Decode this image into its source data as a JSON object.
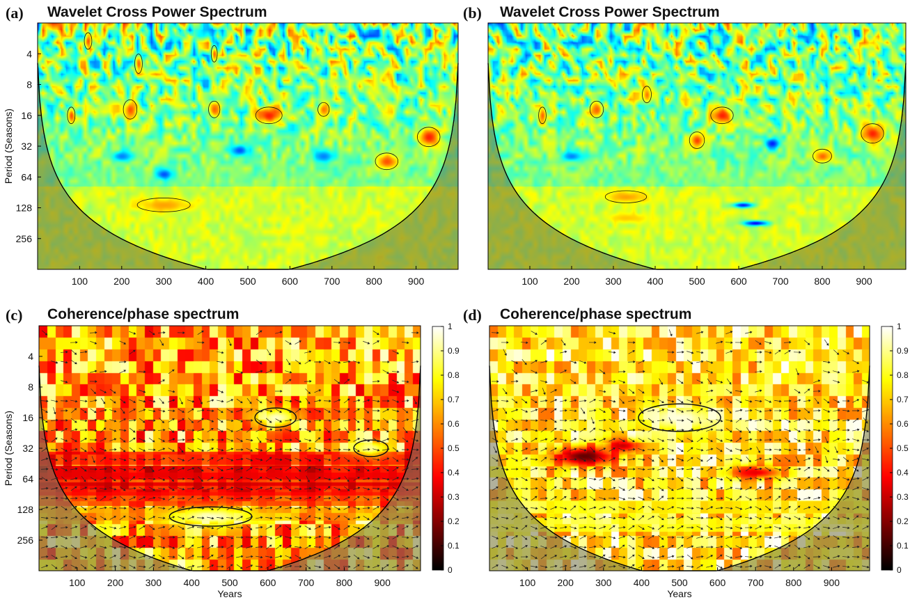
{
  "chart_data": [
    {
      "panel": "(a)",
      "type": "heatmap",
      "title": "Wavelet Cross Power Spectrum",
      "ylabel": "Period (Seasons)",
      "xlabel": "",
      "xticks": [
        "100",
        "200",
        "300",
        "400",
        "500",
        "600",
        "700",
        "800",
        "900"
      ],
      "yticks": [
        "4",
        "8",
        "16",
        "32",
        "64",
        "128",
        "256"
      ],
      "xlim": [
        0,
        1000
      ],
      "ylim_log2": [
        1,
        9
      ],
      "colorbar": false,
      "colormap": "jet",
      "cone_of_influence": true,
      "blobs": [
        {
          "x": 300,
          "p": 120,
          "v": 0.72,
          "rx": 70,
          "rp": 0.25
        },
        {
          "x": 830,
          "p": 45,
          "v": 0.8,
          "rx": 30,
          "rp": 0.3
        },
        {
          "x": 930,
          "p": 26,
          "v": 0.85,
          "rx": 30,
          "rp": 0.35
        },
        {
          "x": 550,
          "p": 16,
          "v": 0.85,
          "rx": 35,
          "rp": 0.3
        },
        {
          "x": 220,
          "p": 14,
          "v": 0.8,
          "rx": 18,
          "rp": 0.35
        },
        {
          "x": 80,
          "p": 16,
          "v": 0.8,
          "rx": 10,
          "rp": 0.3
        },
        {
          "x": 420,
          "p": 14,
          "v": 0.78,
          "rx": 15,
          "rp": 0.3
        },
        {
          "x": 680,
          "p": 14,
          "v": 0.76,
          "rx": 15,
          "rp": 0.25
        },
        {
          "x": 240,
          "p": 5,
          "v": 0.78,
          "rx": 10,
          "rp": 0.35
        },
        {
          "x": 420,
          "p": 4,
          "v": 0.78,
          "rx": 8,
          "rp": 0.3
        },
        {
          "x": 120,
          "p": 3,
          "v": 0.8,
          "rx": 10,
          "rp": 0.3
        },
        {
          "x": 300,
          "p": 60,
          "v": 0.2,
          "rx": 25,
          "rp": 0.2
        },
        {
          "x": 480,
          "p": 35,
          "v": 0.2,
          "rx": 25,
          "rp": 0.2
        },
        {
          "x": 200,
          "p": 40,
          "v": 0.25,
          "rx": 30,
          "rp": 0.2
        },
        {
          "x": 680,
          "p": 40,
          "v": 0.25,
          "rx": 30,
          "rp": 0.25
        }
      ]
    },
    {
      "panel": "(b)",
      "type": "heatmap",
      "title": "Wavelet Cross Power Spectrum",
      "ylabel": "",
      "xlabel": "",
      "xticks": [
        "100",
        "200",
        "300",
        "400",
        "500",
        "600",
        "700",
        "800",
        "900"
      ],
      "yticks": [],
      "xlim": [
        0,
        1000
      ],
      "ylim_log2": [
        1,
        9
      ],
      "colorbar": false,
      "colormap": "jet",
      "cone_of_influence": true,
      "blobs": [
        {
          "x": 330,
          "p": 100,
          "v": 0.72,
          "rx": 55,
          "rp": 0.22
        },
        {
          "x": 330,
          "p": 160,
          "v": 0.68,
          "rx": 55,
          "rp": 0.18
        },
        {
          "x": 560,
          "p": 16,
          "v": 0.85,
          "rx": 30,
          "rp": 0.3
        },
        {
          "x": 500,
          "p": 28,
          "v": 0.82,
          "rx": 20,
          "rp": 0.3
        },
        {
          "x": 920,
          "p": 24,
          "v": 0.85,
          "rx": 30,
          "rp": 0.35
        },
        {
          "x": 800,
          "p": 40,
          "v": 0.78,
          "rx": 25,
          "rp": 0.25
        },
        {
          "x": 260,
          "p": 14,
          "v": 0.78,
          "rx": 18,
          "rp": 0.3
        },
        {
          "x": 130,
          "p": 16,
          "v": 0.78,
          "rx": 10,
          "rp": 0.3
        },
        {
          "x": 380,
          "p": 10,
          "v": 0.76,
          "rx": 12,
          "rp": 0.3
        },
        {
          "x": 610,
          "p": 120,
          "v": 0.15,
          "rx": 30,
          "rp": 0.1
        },
        {
          "x": 640,
          "p": 180,
          "v": 0.12,
          "rx": 35,
          "rp": 0.1
        },
        {
          "x": 680,
          "p": 30,
          "v": 0.15,
          "rx": 20,
          "rp": 0.2
        },
        {
          "x": 200,
          "p": 40,
          "v": 0.25,
          "rx": 30,
          "rp": 0.2
        }
      ]
    },
    {
      "panel": "(c)",
      "type": "heatmap",
      "title": "Coherence/phase spectrum",
      "ylabel": "Period (Seasons)",
      "xlabel": "Years",
      "xticks": [
        "100",
        "200",
        "300",
        "400",
        "500",
        "600",
        "700",
        "800",
        "900"
      ],
      "yticks": [
        "4",
        "8",
        "16",
        "32",
        "64",
        "128",
        "256"
      ],
      "xlim": [
        0,
        1000
      ],
      "ylim_log2": [
        1,
        9
      ],
      "colorbar": true,
      "colorbar_ticks": [
        "0",
        "0.1",
        "0.2",
        "0.3",
        "0.4",
        "0.5",
        "0.6",
        "0.7",
        "0.8",
        "0.9",
        "1"
      ],
      "colormap": "hot",
      "phase_arrows": true,
      "cone_of_influence": true,
      "bands": [
        {
          "p": 40,
          "v": 0.3
        },
        {
          "p": 55,
          "v": 0.2
        },
        {
          "p": 64,
          "v": 0.35
        },
        {
          "p": 80,
          "v": 0.25
        },
        {
          "p": 100,
          "v": 0.4
        },
        {
          "p": 140,
          "v": 0.6
        }
      ],
      "blobs": [
        {
          "x": 450,
          "p": 150,
          "v": 0.95,
          "rx": 120,
          "rp": 0.35
        },
        {
          "x": 620,
          "p": 16,
          "v": 0.95,
          "rx": 60,
          "rp": 0.35
        },
        {
          "x": 870,
          "p": 32,
          "v": 0.9,
          "rx": 50,
          "rp": 0.3
        }
      ]
    },
    {
      "panel": "(d)",
      "type": "heatmap",
      "title": "Coherence/phase spectrum",
      "ylabel": "",
      "xlabel": "Years",
      "xticks": [
        "100",
        "200",
        "300",
        "400",
        "500",
        "600",
        "700",
        "800",
        "900"
      ],
      "yticks": [],
      "xlim": [
        0,
        1000
      ],
      "ylim_log2": [
        1,
        9
      ],
      "colorbar": true,
      "colorbar_ticks": [
        "0",
        "0.1",
        "0.2",
        "0.3",
        "0.4",
        "0.5",
        "0.6",
        "0.7",
        "0.8",
        "0.9",
        "1"
      ],
      "colormap": "hot",
      "phase_arrows": true,
      "cone_of_influence": true,
      "bands": [
        {
          "p": 120,
          "v": 0.8
        },
        {
          "p": 180,
          "v": 0.85
        }
      ],
      "blobs": [
        {
          "x": 250,
          "p": 38,
          "v": 0.15,
          "rx": 90,
          "rp": 0.35
        },
        {
          "x": 700,
          "p": 55,
          "v": 0.35,
          "rx": 80,
          "rp": 0.25
        },
        {
          "x": 350,
          "p": 30,
          "v": 0.3,
          "rx": 50,
          "rp": 0.25
        },
        {
          "x": 500,
          "p": 16,
          "v": 0.97,
          "rx": 120,
          "rp": 0.5
        }
      ]
    }
  ]
}
